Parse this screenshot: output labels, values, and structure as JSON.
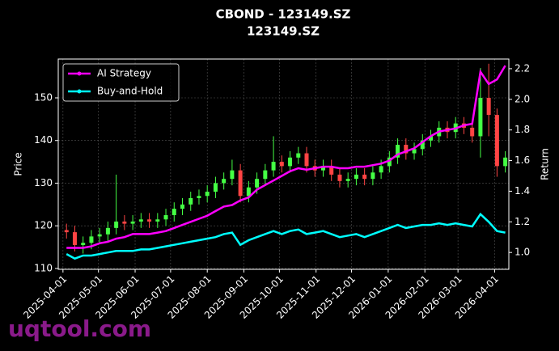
{
  "chart_data": {
    "type": "candlestick",
    "title": "CBOND - 123149.SZ",
    "subtitle": "123149.SZ",
    "x": [
      "2025-04-04",
      "2025-04-11",
      "2025-04-18",
      "2025-04-25",
      "2025-05-02",
      "2025-05-09",
      "2025-05-16",
      "2025-05-23",
      "2025-05-30",
      "2025-06-06",
      "2025-06-13",
      "2025-06-20",
      "2025-06-27",
      "2025-07-04",
      "2025-07-11",
      "2025-07-18",
      "2025-07-25",
      "2025-08-01",
      "2025-08-08",
      "2025-08-15",
      "2025-08-22",
      "2025-08-29",
      "2025-09-05",
      "2025-09-12",
      "2025-09-19",
      "2025-09-26",
      "2025-10-03",
      "2025-10-10",
      "2025-10-17",
      "2025-10-24",
      "2025-10-31",
      "2025-11-07",
      "2025-11-14",
      "2025-11-21",
      "2025-11-28",
      "2025-12-05",
      "2025-12-12",
      "2025-12-19",
      "2025-12-26",
      "2026-01-02",
      "2026-01-09",
      "2026-01-16",
      "2026-01-23",
      "2026-01-30",
      "2026-02-06",
      "2026-02-13",
      "2026-02-20",
      "2026-02-27",
      "2026-03-06",
      "2026-03-13",
      "2026-03-20",
      "2026-03-27",
      "2026-04-03",
      "2026-04-10"
    ],
    "open": [
      119,
      118.5,
      115.5,
      116,
      117.5,
      118,
      119.5,
      121,
      120.5,
      121,
      121.5,
      121,
      121.5,
      122.5,
      124,
      125,
      126.5,
      127,
      128,
      130,
      131,
      133,
      127,
      129,
      131,
      133,
      135,
      134,
      136,
      137,
      134,
      133,
      134,
      132,
      130.5,
      131,
      132,
      131,
      132.5,
      134,
      136,
      139,
      137,
      138,
      140,
      141,
      143,
      142,
      144,
      143,
      141,
      150,
      146,
      134
    ],
    "high": [
      120.5,
      120,
      117.5,
      119,
      119.5,
      121,
      132,
      122.5,
      122.5,
      123,
      123,
      123,
      124,
      125.5,
      126.5,
      128,
      128.5,
      129.5,
      131.5,
      132.5,
      135.5,
      134.5,
      130.5,
      132.5,
      134.5,
      141,
      136.5,
      137.5,
      138.5,
      138.5,
      135.5,
      135.5,
      135.5,
      133.5,
      132.5,
      133.5,
      133.5,
      134,
      135.5,
      137.5,
      140.5,
      140.5,
      139.5,
      141.5,
      142.5,
      144.5,
      144.5,
      145.5,
      145.5,
      144.5,
      157,
      158,
      147.5,
      137.5
    ],
    "low": [
      117,
      114,
      113.5,
      114.5,
      116,
      116.5,
      118,
      119,
      119,
      119.5,
      119.5,
      119.5,
      120,
      121,
      122.5,
      123.5,
      125,
      125.5,
      126.5,
      128.5,
      129.5,
      125.5,
      125.5,
      127.5,
      129.5,
      131.5,
      132.5,
      132.5,
      134.5,
      132.5,
      131.5,
      131.5,
      130.5,
      129,
      129,
      129.5,
      129.5,
      129.5,
      131,
      132.5,
      134.5,
      135.5,
      135.5,
      136.5,
      138.5,
      139.5,
      140.5,
      140.5,
      141.5,
      139.5,
      136,
      141,
      131.5,
      132.5
    ],
    "close": [
      118.5,
      115.5,
      116,
      117.5,
      118,
      119.5,
      121,
      120.5,
      121,
      121.5,
      121,
      121.5,
      122.5,
      124,
      125,
      126.5,
      127,
      128,
      130,
      131,
      133,
      127,
      129,
      131,
      133,
      135,
      134,
      136,
      137,
      134,
      133,
      134,
      132,
      130.5,
      131,
      132,
      131,
      132.5,
      134,
      136,
      139,
      137,
      138,
      140,
      141,
      143,
      142,
      144,
      143,
      141,
      150,
      146,
      134,
      136
    ],
    "up_color": "#44ff44",
    "down_color": "#ff4444",
    "series": [
      {
        "name": "AI Strategy",
        "color": "#ff00ff",
        "axis": "y2",
        "values": [
          1.03,
          1.03,
          1.03,
          1.04,
          1.06,
          1.07,
          1.09,
          1.1,
          1.12,
          1.12,
          1.12,
          1.13,
          1.14,
          1.16,
          1.18,
          1.2,
          1.22,
          1.24,
          1.27,
          1.3,
          1.31,
          1.34,
          1.36,
          1.41,
          1.44,
          1.47,
          1.5,
          1.53,
          1.55,
          1.54,
          1.55,
          1.56,
          1.56,
          1.55,
          1.55,
          1.56,
          1.56,
          1.57,
          1.58,
          1.6,
          1.64,
          1.66,
          1.68,
          1.72,
          1.76,
          1.79,
          1.8,
          1.81,
          1.83,
          1.84,
          2.18,
          2.1,
          2.13,
          2.22
        ]
      },
      {
        "name": "Buy-and-Hold",
        "color": "#00ffff",
        "axis": "y2",
        "values": [
          0.99,
          0.96,
          0.98,
          0.98,
          0.99,
          1.0,
          1.01,
          1.01,
          1.01,
          1.02,
          1.02,
          1.03,
          1.04,
          1.05,
          1.06,
          1.07,
          1.08,
          1.09,
          1.1,
          1.12,
          1.13,
          1.05,
          1.08,
          1.1,
          1.12,
          1.14,
          1.12,
          1.14,
          1.15,
          1.12,
          1.13,
          1.14,
          1.12,
          1.1,
          1.11,
          1.12,
          1.1,
          1.12,
          1.14,
          1.16,
          1.18,
          1.16,
          1.17,
          1.18,
          1.18,
          1.19,
          1.18,
          1.19,
          1.18,
          1.17,
          1.25,
          1.2,
          1.14,
          1.13
        ]
      }
    ],
    "xlim": [
      "2025-03-28",
      "2026-04-13"
    ],
    "xticks": [
      "2025-04-01",
      "2025-05-01",
      "2025-06-01",
      "2025-07-01",
      "2025-08-01",
      "2025-09-01",
      "2025-10-01",
      "2025-11-01",
      "2025-12-01",
      "2026-01-01",
      "2026-02-01",
      "2026-03-01",
      "2026-04-01"
    ],
    "ylim": [
      109.8,
      159.1
    ],
    "yticks": [
      110,
      120,
      130,
      140,
      150
    ],
    "y2lim": [
      0.89,
      2.263
    ],
    "y2ticks": [
      {
        "value": 1,
        "label": "1.0"
      },
      1.2,
      1.4,
      1.6,
      1.8,
      {
        "value": 2,
        "label": "2.0"
      },
      2.2
    ],
    "ylabel": "Price",
    "y2label": "Return",
    "grid": true,
    "legend": "upper left"
  },
  "watermark": "uqtool.com"
}
